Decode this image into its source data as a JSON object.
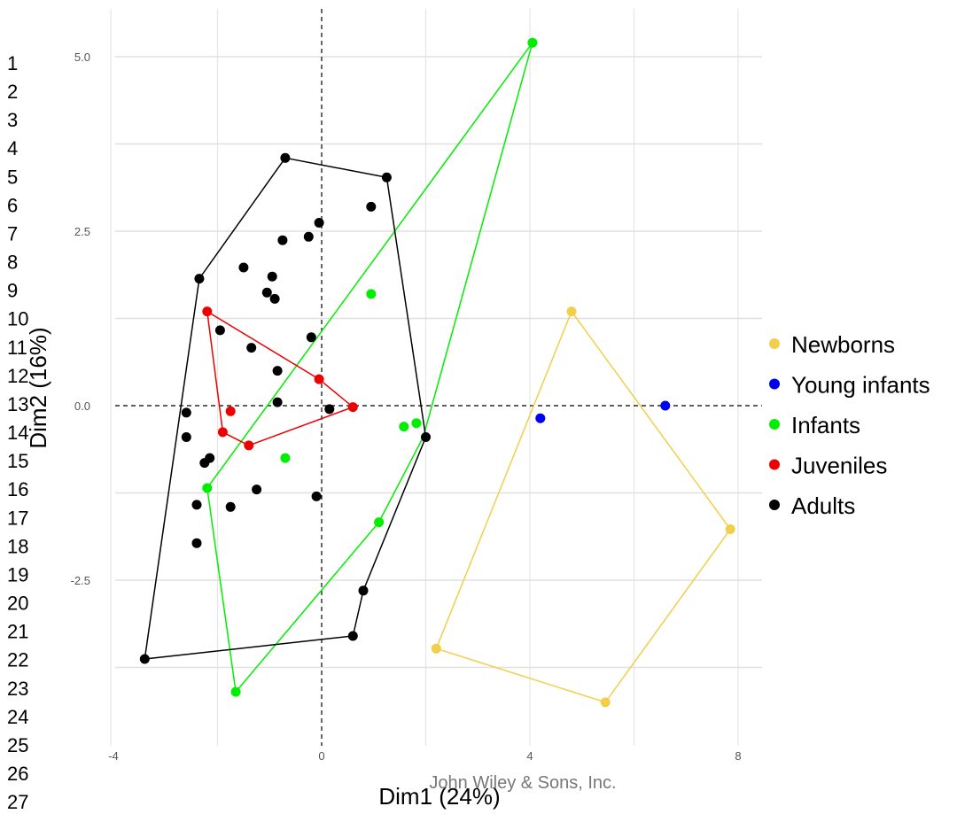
{
  "line_numbers": [
    "1",
    "2",
    "3",
    "4",
    "5",
    "6",
    "7",
    "8",
    "9",
    "10",
    "11",
    "12",
    "13",
    "14",
    "15",
    "16",
    "17",
    "18",
    "19",
    "20",
    "21",
    "22",
    "23",
    "24",
    "25",
    "26",
    "27"
  ],
  "credit": "John Wiley & Sons, Inc.",
  "chart_data": {
    "type": "scatter",
    "xlabel": "Dim1 (24%)",
    "ylabel": "Dim2 (16%)",
    "xlim": [
      -4,
      8.5
    ],
    "ylim": [
      -4.9,
      5.7
    ],
    "x_ticks": [
      -4,
      0,
      4,
      8
    ],
    "x_tick_labels": [
      "-4",
      "0",
      "4",
      "8"
    ],
    "y_ticks": [
      5.0,
      2.5,
      0.0,
      -2.5
    ],
    "y_tick_labels": [
      "5.0",
      "2.5",
      "0.0",
      "-2.5"
    ],
    "grid": true,
    "reference_lines": {
      "x": 0,
      "y": 0,
      "style": "dashed"
    },
    "legend_position": "right",
    "series": [
      {
        "name": "Newborns",
        "color": "#f2cf4a",
        "points": [
          [
            4.8,
            1.35
          ],
          [
            7.85,
            -1.77
          ],
          [
            5.45,
            -4.25
          ],
          [
            2.2,
            -3.48
          ]
        ],
        "hull": [
          [
            4.8,
            1.35
          ],
          [
            7.85,
            -1.77
          ],
          [
            5.45,
            -4.25
          ],
          [
            2.2,
            -3.48
          ]
        ]
      },
      {
        "name": "Young infants",
        "color": "#0000ee",
        "points": [
          [
            4.2,
            -0.18
          ],
          [
            6.6,
            0.0
          ]
        ],
        "hull": []
      },
      {
        "name": "Infants",
        "color": "#00ee00",
        "points": [
          [
            4.05,
            5.2
          ],
          [
            0.95,
            1.6
          ],
          [
            1.82,
            -0.25
          ],
          [
            1.58,
            -0.3
          ],
          [
            -0.7,
            -0.75
          ],
          [
            -2.2,
            -1.18
          ],
          [
            1.1,
            -1.67
          ],
          [
            -1.65,
            -4.1
          ]
        ],
        "hull": [
          [
            4.05,
            5.2
          ],
          [
            1.95,
            -0.45
          ],
          [
            1.1,
            -1.67
          ],
          [
            -1.65,
            -4.1
          ],
          [
            -2.2,
            -1.18
          ]
        ]
      },
      {
        "name": "Juveniles",
        "color": "#ee0000",
        "points": [
          [
            -2.2,
            1.35
          ],
          [
            -0.05,
            0.38
          ],
          [
            0.6,
            -0.02
          ],
          [
            -1.75,
            -0.08
          ],
          [
            -1.9,
            -0.38
          ],
          [
            -1.4,
            -0.57
          ]
        ],
        "hull": [
          [
            -2.2,
            1.35
          ],
          [
            -0.05,
            0.38
          ],
          [
            0.6,
            -0.02
          ],
          [
            -1.4,
            -0.57
          ],
          [
            -1.9,
            -0.38
          ]
        ]
      },
      {
        "name": "Adults",
        "color": "#000000",
        "points": [
          [
            -0.7,
            3.55
          ],
          [
            1.25,
            3.27
          ],
          [
            0.95,
            2.85
          ],
          [
            -0.05,
            2.62
          ],
          [
            -0.25,
            2.42
          ],
          [
            -0.75,
            2.37
          ],
          [
            -1.5,
            1.98
          ],
          [
            -0.95,
            1.85
          ],
          [
            -1.05,
            1.62
          ],
          [
            -0.9,
            1.53
          ],
          [
            -2.35,
            1.82
          ],
          [
            -1.95,
            1.08
          ],
          [
            -0.2,
            0.98
          ],
          [
            -1.35,
            0.83
          ],
          [
            -0.85,
            0.5
          ],
          [
            -0.85,
            0.05
          ],
          [
            0.15,
            -0.05
          ],
          [
            -2.6,
            -0.1
          ],
          [
            -2.6,
            -0.45
          ],
          [
            2.0,
            -0.45
          ],
          [
            -2.15,
            -0.75
          ],
          [
            -2.25,
            -0.82
          ],
          [
            -1.25,
            -1.2
          ],
          [
            -0.1,
            -1.3
          ],
          [
            -2.4,
            -1.42
          ],
          [
            -1.75,
            -1.45
          ],
          [
            -2.4,
            -1.97
          ],
          [
            0.8,
            -2.65
          ],
          [
            0.6,
            -3.3
          ],
          [
            -3.4,
            -3.63
          ]
        ],
        "hull": [
          [
            -0.7,
            3.55
          ],
          [
            1.25,
            3.27
          ],
          [
            2.0,
            -0.45
          ],
          [
            0.8,
            -2.65
          ],
          [
            0.6,
            -3.3
          ],
          [
            -3.4,
            -3.63
          ],
          [
            -2.35,
            1.82
          ]
        ]
      }
    ]
  }
}
